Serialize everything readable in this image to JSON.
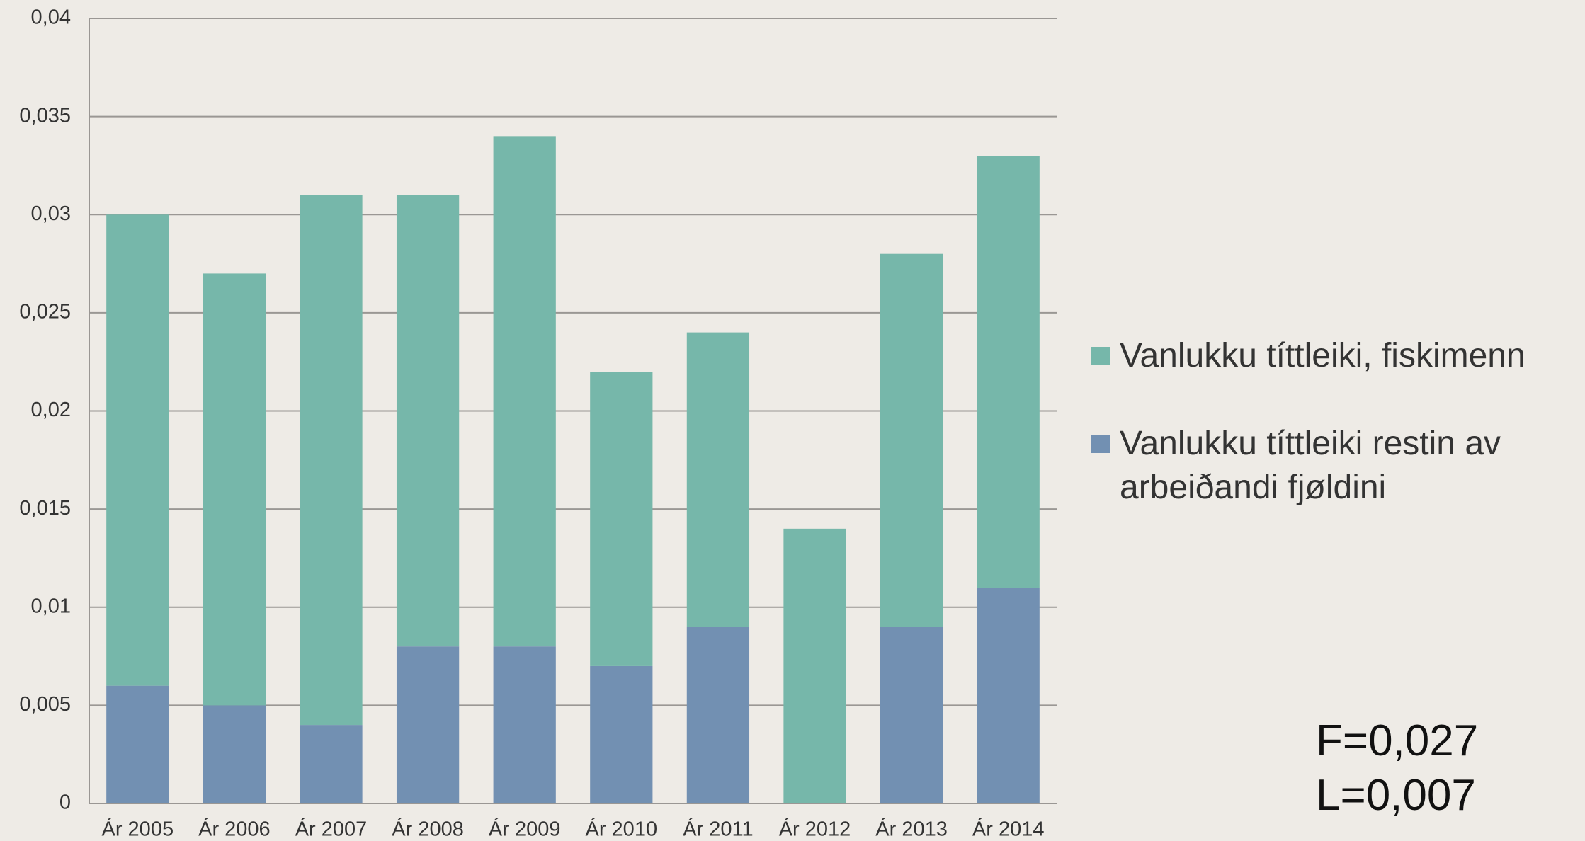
{
  "chart_data": {
    "type": "bar",
    "stacked": true,
    "categories": [
      "Ár 2005",
      "Ár 2006",
      "Ár 2007",
      "Ár 2008",
      "Ár 2009",
      "Ár 2010",
      "Ár 2011",
      "Ár 2012",
      "Ár 2013",
      "Ár 2014"
    ],
    "series": [
      {
        "name": "Vanlukku títtleiki restin av arbeiðandi fjøldini",
        "color": "#7290b2",
        "values": [
          0.006,
          0.005,
          0.004,
          0.008,
          0.008,
          0.007,
          0.009,
          0,
          0.009,
          0.011
        ]
      },
      {
        "name": "Vanlukku títtleiki, fiskimenn",
        "color": "#76b7aa",
        "values": [
          0.024,
          0.022,
          0.027,
          0.023,
          0.026,
          0.015,
          0.015,
          0.014,
          0.019,
          0.022
        ]
      }
    ],
    "ylim": [
      0,
      0.04
    ],
    "yticks": [
      0,
      {
        "value": 0.005,
        "label": "0,005"
      },
      {
        "value": 0.01,
        "label": "0,01"
      },
      {
        "value": 0.015,
        "label": "0,015"
      },
      {
        "value": 0.02,
        "label": "0,02"
      },
      {
        "value": 0.025,
        "label": "0,025"
      },
      {
        "value": 0.03,
        "label": "0,03"
      },
      {
        "value": 0.035,
        "label": "0,035"
      },
      {
        "value": 0.04,
        "label": "0,04"
      }
    ],
    "grid": true,
    "legend": "right",
    "annotations": [
      "F=0,027",
      "L=0,007"
    ]
  }
}
